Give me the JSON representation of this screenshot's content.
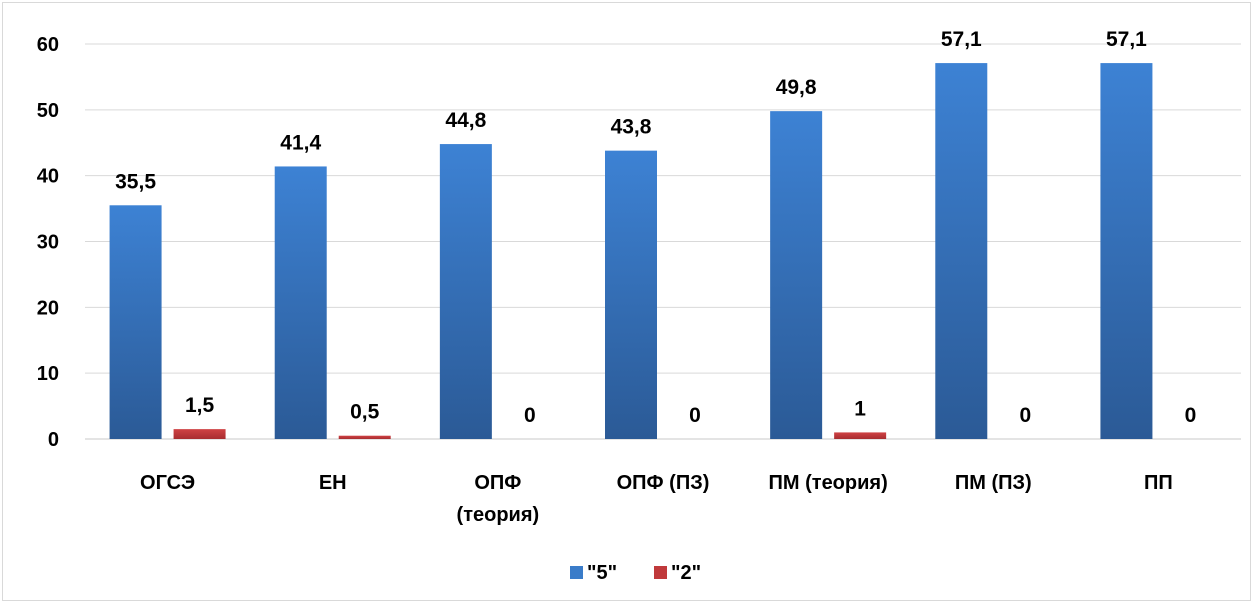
{
  "chart_data": {
    "type": "bar",
    "categories": [
      [
        "ОГСЭ"
      ],
      [
        "ЕН"
      ],
      [
        "ОПФ",
        "(теория)"
      ],
      [
        "ОПФ (ПЗ)"
      ],
      [
        "ПМ (теория)"
      ],
      [
        "ПМ (ПЗ)"
      ],
      [
        "ПП"
      ]
    ],
    "series": [
      {
        "name": "\"5\"",
        "color": "#3a7cc9",
        "values": [
          35.5,
          41.4,
          44.8,
          43.8,
          49.8,
          57.1,
          57.1
        ],
        "labels": [
          "35,5",
          "41,4",
          "44,8",
          "43,8",
          "49,8",
          "57,1",
          "57,1"
        ]
      },
      {
        "name": "\"2\"",
        "color": "#c0393b",
        "values": [
          1.5,
          0.5,
          0,
          0,
          1,
          0,
          0
        ],
        "labels": [
          "1,5",
          "0,5",
          "0",
          "0",
          "1",
          "0",
          "0"
        ]
      }
    ],
    "yticks": [
      "0",
      "10",
      "20",
      "30",
      "40",
      "50",
      "60"
    ],
    "ylim": [
      0,
      60
    ],
    "title": "",
    "xlabel": "",
    "ylabel": "",
    "grid": true,
    "legend_position": "bottom"
  }
}
